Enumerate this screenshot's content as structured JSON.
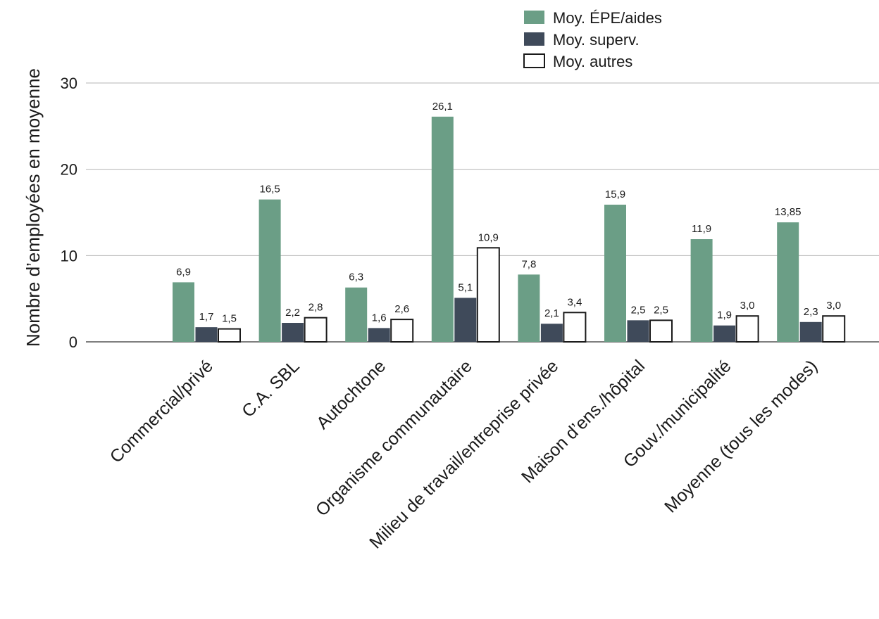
{
  "chart_data": {
    "type": "bar",
    "title": "",
    "xlabel": "",
    "ylabel": "Nombre d’employées en moyenne",
    "ylim": [
      0,
      30
    ],
    "yticks": [
      0,
      10,
      20,
      30
    ],
    "grid": true,
    "legend_position": "top-right",
    "categories": [
      "Commercial/privé",
      "C.A. SBL",
      "Autochtone",
      "Organisme communautaire",
      "Milieu de travail/entreprise privée",
      "Maison d’ens./hôpital",
      "Gouv./municipalité",
      "Moyenne (tous les modes)"
    ],
    "series": [
      {
        "name": "Moy. ÉPE/aides",
        "color": "#6b9e86",
        "outline": "#6b9e86",
        "values": [
          6.9,
          16.5,
          6.3,
          26.1,
          7.8,
          15.9,
          11.9,
          13.85
        ],
        "labels": [
          "6,9",
          "16,5",
          "6,3",
          "26,1",
          "7,8",
          "15,9",
          "11,9",
          "13,85"
        ]
      },
      {
        "name": "Moy. superv.",
        "color": "#3f4a5a",
        "outline": "#3f4a5a",
        "values": [
          1.7,
          2.2,
          1.6,
          5.1,
          2.1,
          2.5,
          1.9,
          2.3
        ],
        "labels": [
          "1,7",
          "2,2",
          "1,6",
          "5,1",
          "2,1",
          "2,5",
          "1,9",
          "2,3"
        ]
      },
      {
        "name": "Moy. autres",
        "color": "#ffffff",
        "outline": "#1a1a1a",
        "values": [
          1.5,
          2.8,
          2.6,
          10.9,
          3.4,
          2.5,
          3.0,
          3.0
        ],
        "labels": [
          "1,5",
          "2,8",
          "2,6",
          "10,9",
          "3,4",
          "2,5",
          "3,0",
          "3,0"
        ]
      }
    ]
  }
}
